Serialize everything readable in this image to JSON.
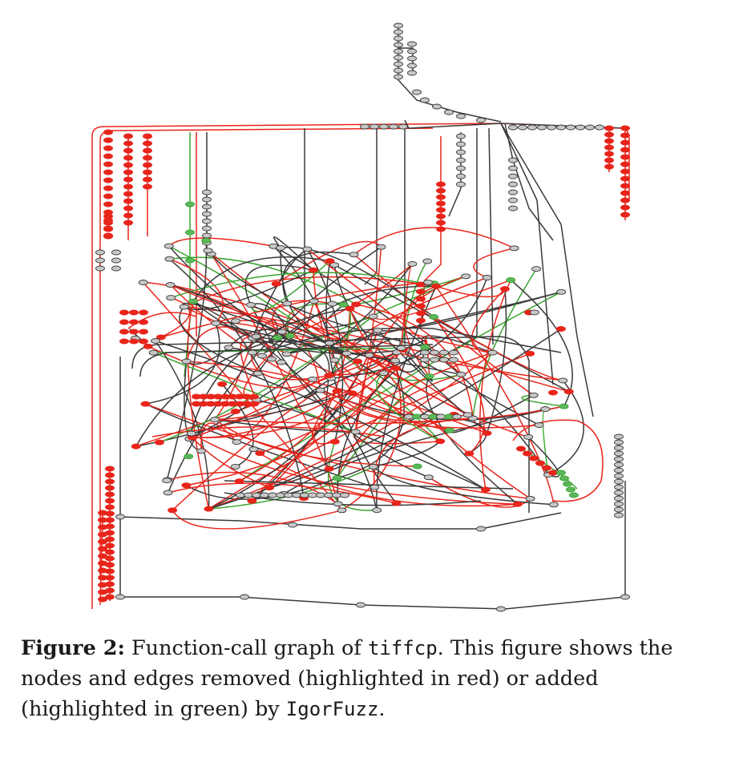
{
  "figure": {
    "colors": {
      "removed": "#e8251b",
      "added": "#3aa531",
      "unchanged": "#3a3a3a",
      "node_fill_unchanged": "#c8c8c8",
      "node_fill_removed": "#e8251b",
      "node_fill_added": "#5cb85c"
    }
  },
  "caption": {
    "label": "Figure 2:",
    "part1": "Function-call graph of ",
    "program": "tiffcp",
    "part2": ". This figure shows the nodes and edges removed (highlighted in red) or added (highlighted in green) by ",
    "tool": "IgorFuzz",
    "part3": "."
  }
}
